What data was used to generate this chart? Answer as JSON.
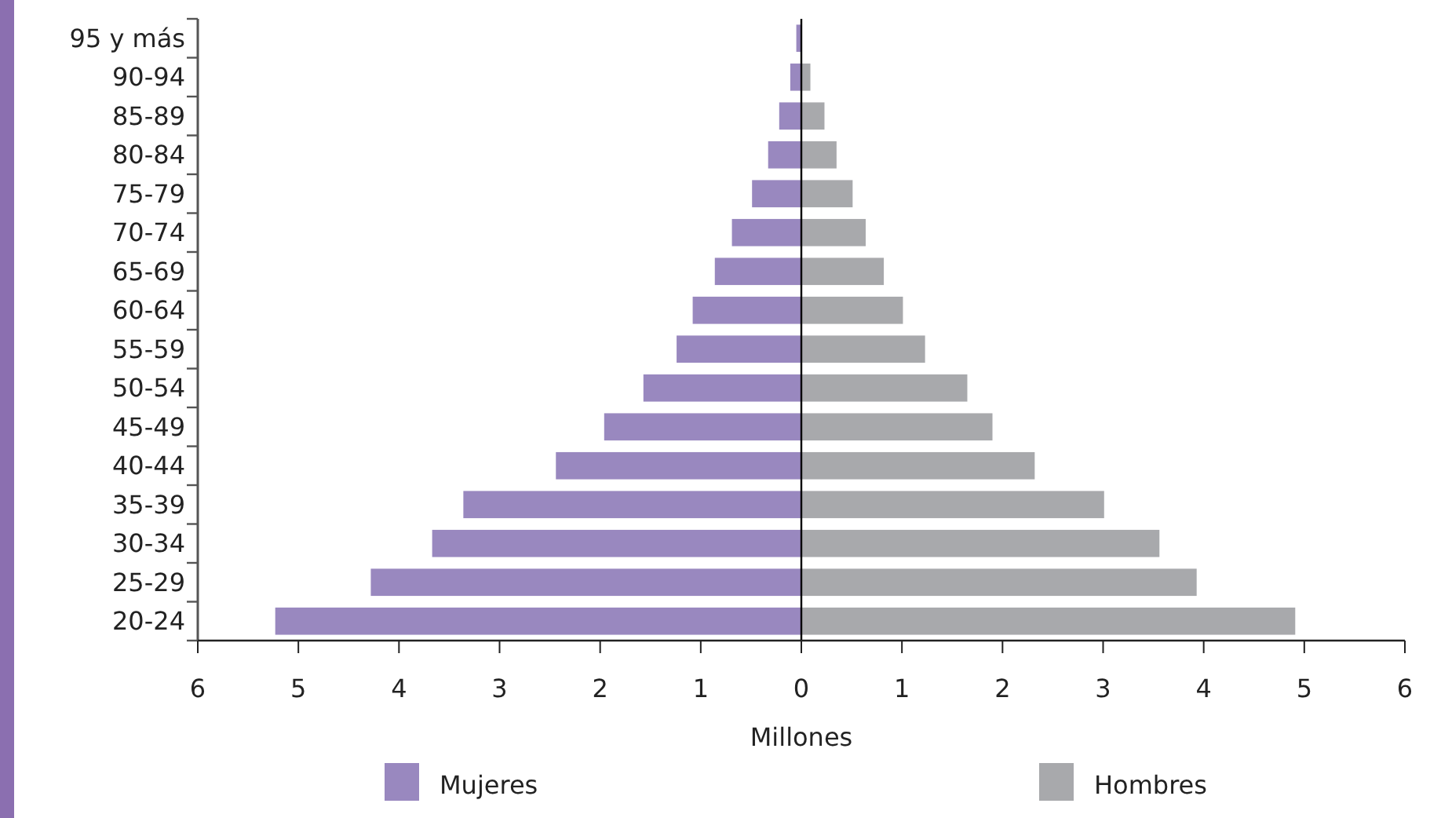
{
  "chart_data": {
    "type": "bar",
    "orientation": "horizontal",
    "xlabel": "Millones",
    "categories": [
      "95 y más",
      "90-94",
      "85-89",
      "80-84",
      "75-79",
      "70-74",
      "65-69",
      "60-64",
      "55-59",
      "50-54",
      "45-49",
      "40-44",
      "35-39",
      "30-34",
      "25-29",
      "20-24"
    ],
    "series": [
      {
        "name": "Mujeres",
        "color": "#9988bf",
        "values": [
          -0.05,
          -0.11,
          -0.22,
          -0.33,
          -0.49,
          -0.69,
          -0.86,
          -1.08,
          -1.24,
          -1.57,
          -1.96,
          -2.44,
          -3.36,
          -3.67,
          -4.28,
          -5.23
        ]
      },
      {
        "name": "Hombres",
        "color": "#a8a9ac",
        "values": [
          0,
          0.09,
          0.23,
          0.35,
          0.51,
          0.64,
          0.82,
          1.01,
          1.23,
          1.65,
          1.9,
          2.32,
          3.01,
          3.56,
          3.93,
          4.91
        ]
      }
    ],
    "xlim": [
      -6,
      6
    ],
    "xticks": [
      {
        "value": -6,
        "label": "6"
      },
      {
        "value": -5,
        "label": "5"
      },
      {
        "value": -4,
        "label": "4"
      },
      {
        "value": -3,
        "label": "3"
      },
      {
        "value": -2,
        "label": "2"
      },
      {
        "value": -1,
        "label": "1"
      },
      0,
      1,
      2,
      3,
      4,
      5,
      6
    ],
    "stacked": true,
    "legend": "bottom"
  }
}
